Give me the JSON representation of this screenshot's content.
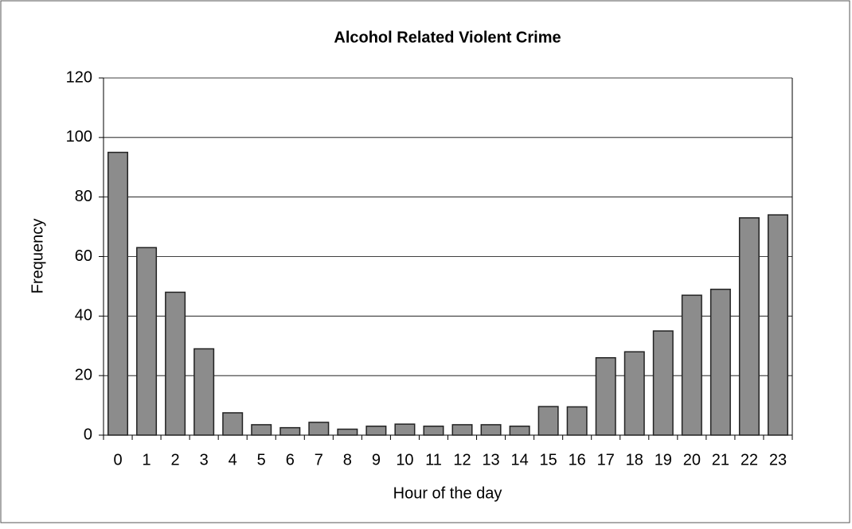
{
  "chart_data": {
    "type": "bar",
    "title": "Alcohol Related Violent Crime",
    "x_label": "Hour of the day",
    "y_label": "Frequency",
    "categories": [
      "0",
      "1",
      "2",
      "3",
      "4",
      "5",
      "6",
      "7",
      "8",
      "9",
      "10",
      "11",
      "12",
      "13",
      "14",
      "15",
      "16",
      "17",
      "18",
      "19",
      "20",
      "21",
      "22",
      "23"
    ],
    "values": [
      95,
      63,
      48,
      29,
      7.5,
      3.5,
      2.5,
      4.3,
      2,
      3,
      3.7,
      3,
      3.5,
      3.5,
      3,
      9.6,
      9.5,
      26,
      28,
      35,
      47,
      49,
      73,
      74
    ],
    "color": "#8c8c8c",
    "ylim": [
      0,
      120
    ],
    "yticks": [
      0,
      20,
      40,
      60,
      80,
      100,
      120
    ],
    "grid": true
  }
}
